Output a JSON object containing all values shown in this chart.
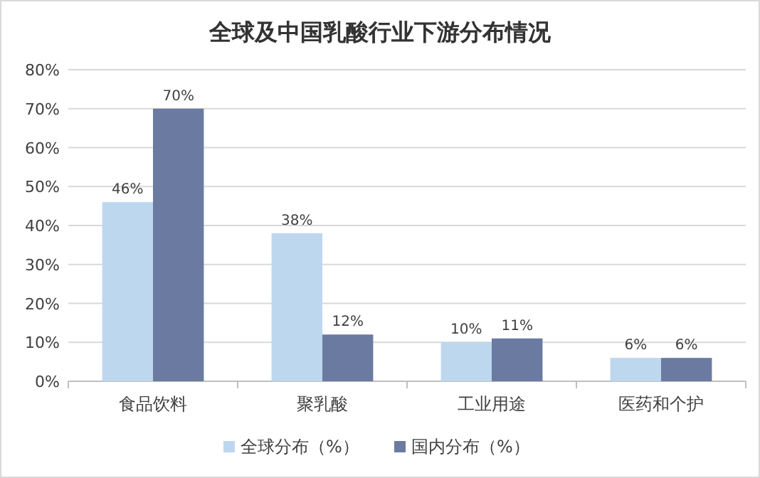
{
  "chart_data": {
    "type": "bar",
    "title": "全球及中国乳酸行业下游分布情况",
    "categories": [
      "食品饮料",
      "聚乳酸",
      "工业用途",
      "医药和个护"
    ],
    "series": [
      {
        "name": "全球分布（%）",
        "color": "#bdd7ee",
        "values": [
          46,
          38,
          10,
          6
        ],
        "value_labels": [
          "46%",
          "38%",
          "10%",
          "6%"
        ]
      },
      {
        "name": "国内分布（%）",
        "color": "#6b7aa1",
        "values": [
          70,
          12,
          11,
          6
        ],
        "value_labels": [
          "70%",
          "12%",
          "11%",
          "6%"
        ]
      }
    ],
    "ylim": [
      0,
      80
    ],
    "yticks": [
      {
        "value": 0,
        "label": "0%"
      },
      {
        "value": 10,
        "label": "10%"
      },
      {
        "value": 20,
        "label": "20%"
      },
      {
        "value": 30,
        "label": "30%"
      },
      {
        "value": 40,
        "label": "40%"
      },
      {
        "value": 50,
        "label": "50%"
      },
      {
        "value": 60,
        "label": "60%"
      },
      {
        "value": 70,
        "label": "70%"
      },
      {
        "value": 80,
        "label": "80%"
      }
    ],
    "grid": "y",
    "legend": "bottom"
  }
}
